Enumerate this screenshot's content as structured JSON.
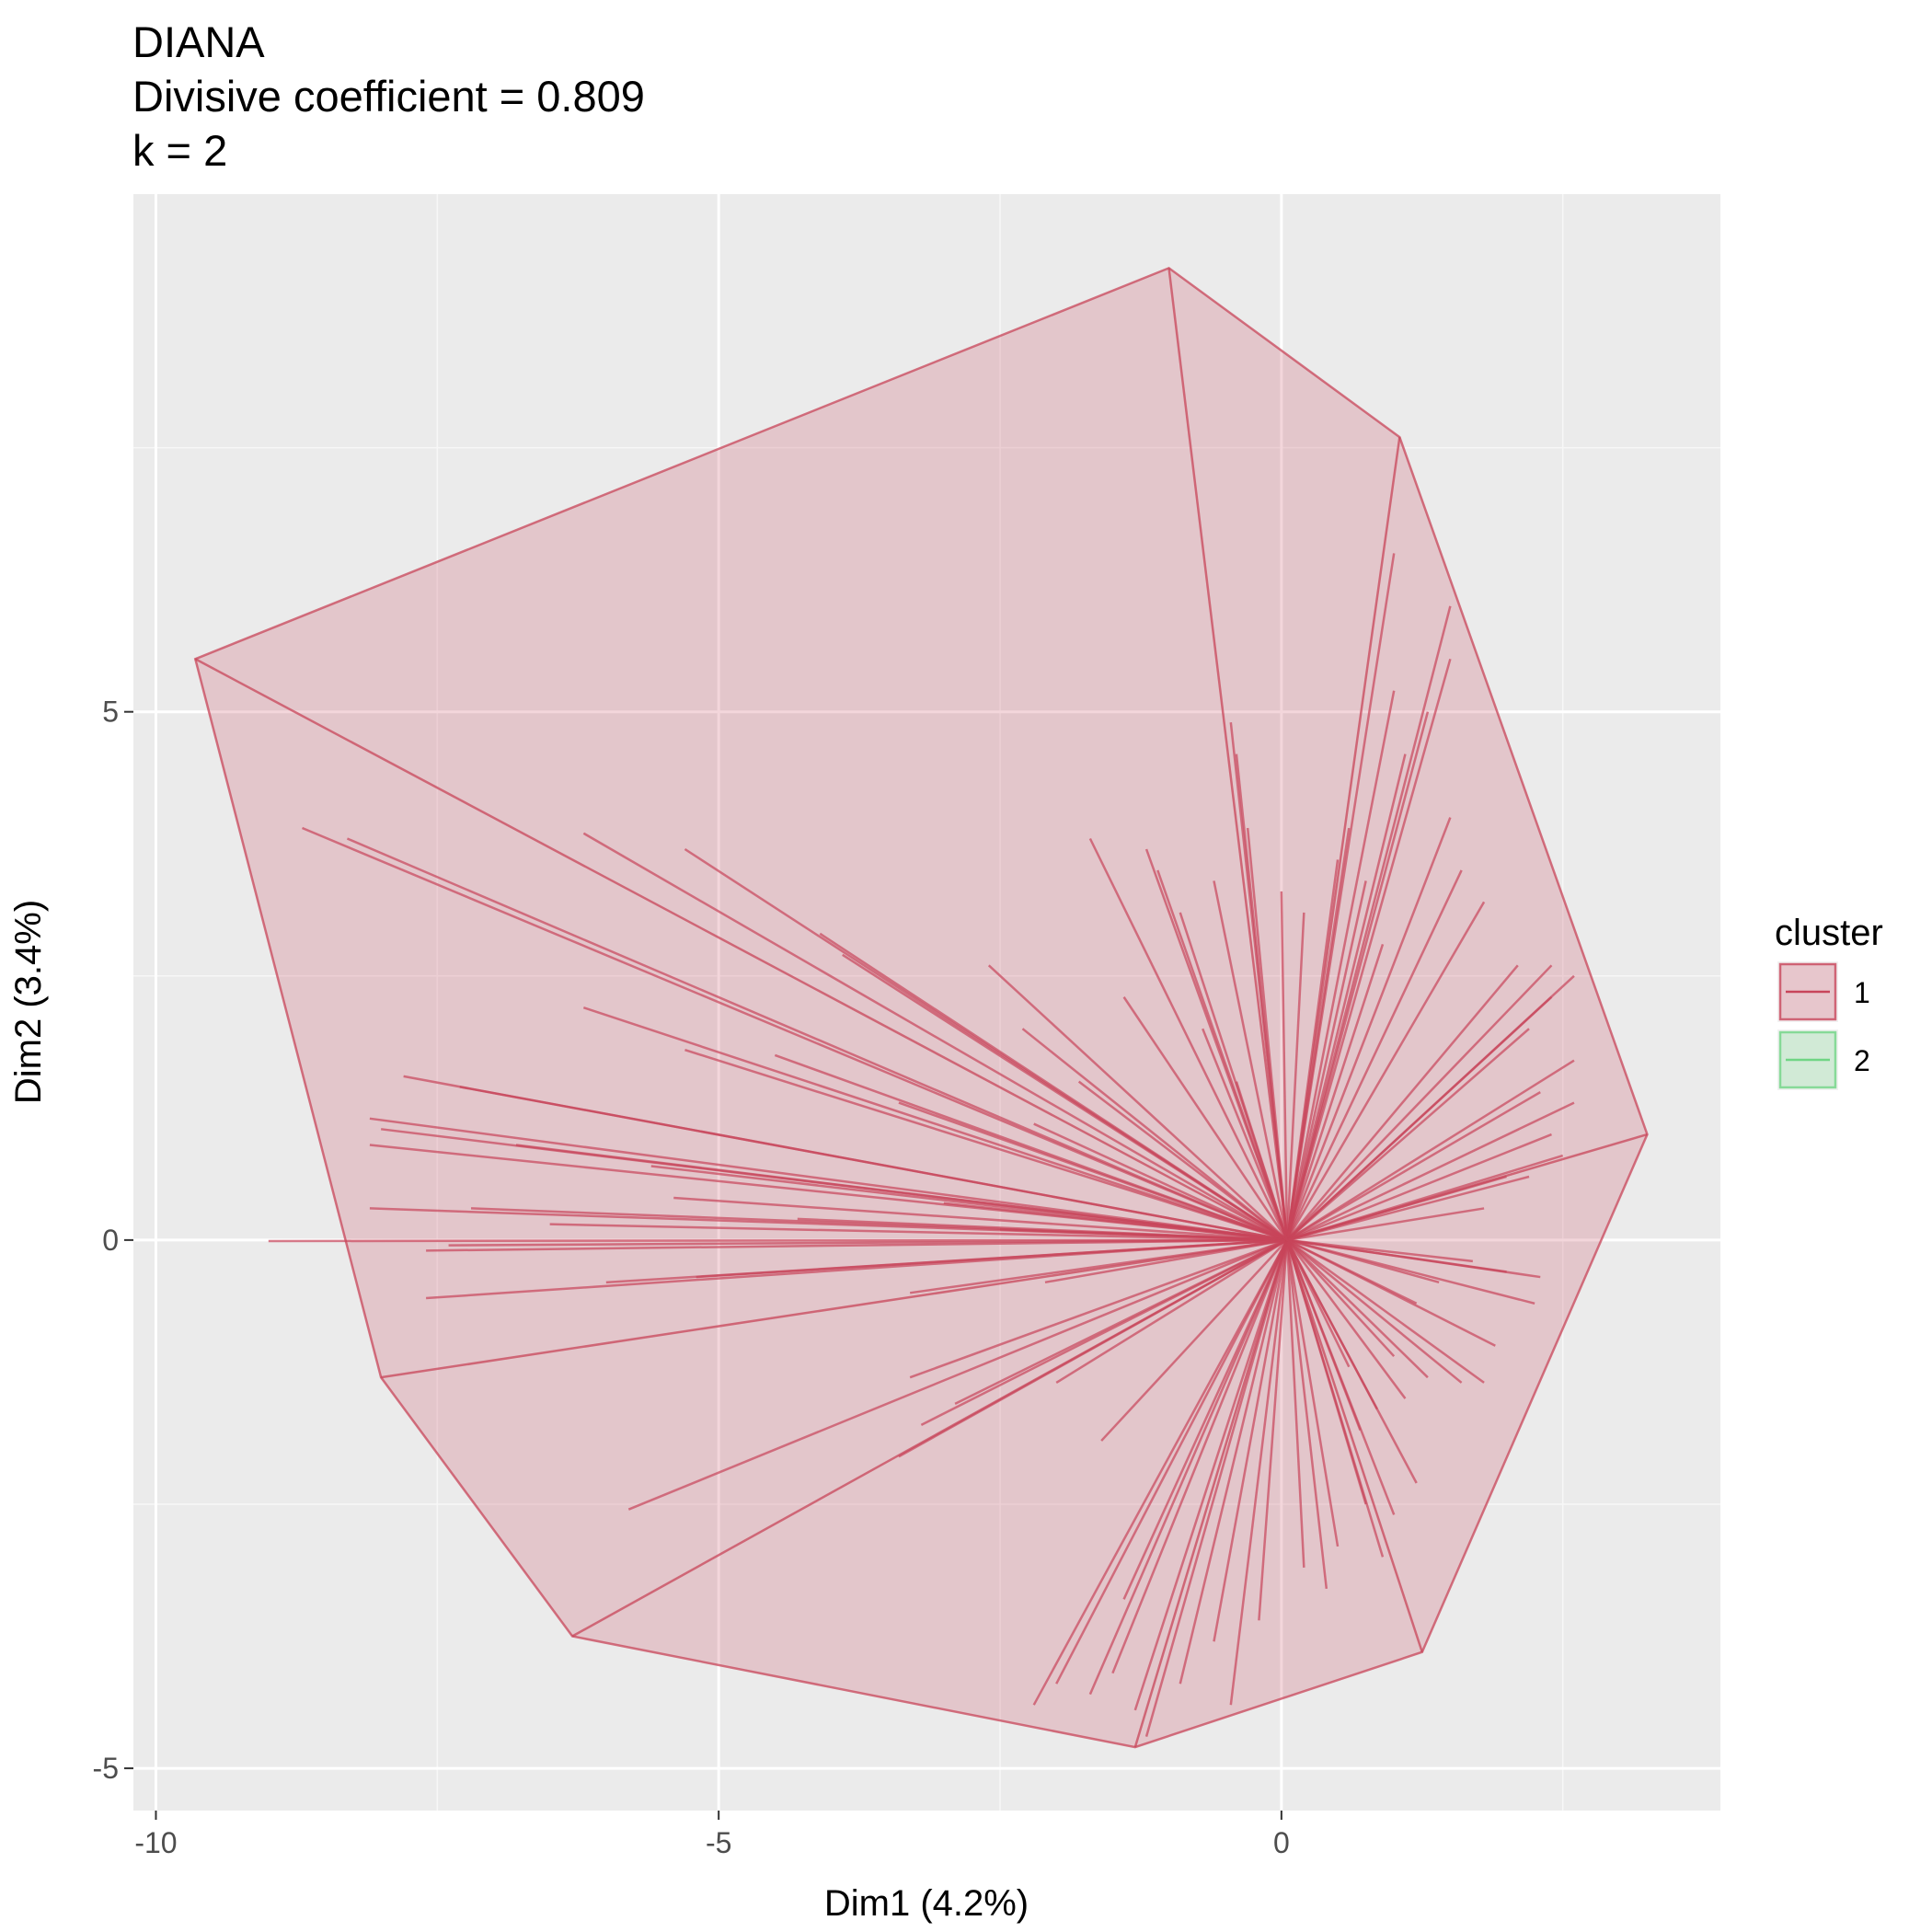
{
  "chart_data": {
    "type": "scatter",
    "title_lines": [
      "DIANA",
      "Divisive coefficient = 0.809",
      "k = 2"
    ],
    "xlabel": "Dim1 (4.2%)",
    "ylabel": "Dim2 (3.4%)",
    "xlim": [
      -10.2,
      3.9
    ],
    "ylim": [
      -5.4,
      9.9
    ],
    "x_ticks": [
      -10,
      -5,
      0
    ],
    "x_tick_labels": [
      "-10",
      "-5",
      "0"
    ],
    "y_ticks": [
      -5,
      0,
      5
    ],
    "y_tick_labels": [
      "-5",
      "0",
      "5"
    ],
    "grid": true,
    "legend": {
      "title": "cluster",
      "position": "right",
      "entries": [
        {
          "label": "1",
          "color": "#c8455a",
          "fill": "#e3c5cb"
        },
        {
          "label": "2",
          "color": "#6fd584",
          "fill": "#cfe9d4"
        }
      ]
    },
    "center": [
      0.05,
      0.0
    ],
    "hull": [
      [
        -9.65,
        5.5
      ],
      [
        -1.0,
        9.2
      ],
      [
        1.05,
        7.6
      ],
      [
        3.25,
        1.0
      ],
      [
        1.25,
        -3.9
      ],
      [
        -1.3,
        -4.8
      ],
      [
        -6.3,
        -3.75
      ],
      [
        -8.0,
        -1.3
      ]
    ],
    "points": [
      [
        -8.7,
        3.9
      ],
      [
        -8.3,
        3.8
      ],
      [
        -6.2,
        3.85
      ],
      [
        -5.3,
        3.7
      ],
      [
        -4.1,
        2.9
      ],
      [
        -3.9,
        2.7
      ],
      [
        -6.2,
        2.2
      ],
      [
        -5.3,
        1.8
      ],
      [
        -4.5,
        1.75
      ],
      [
        -7.8,
        1.55
      ],
      [
        -7.3,
        1.45
      ],
      [
        -8.1,
        1.15
      ],
      [
        -8.0,
        1.05
      ],
      [
        -8.1,
        0.9
      ],
      [
        -6.8,
        0.9
      ],
      [
        -5.6,
        0.7
      ],
      [
        -3.4,
        1.3
      ],
      [
        -2.2,
        1.1
      ],
      [
        -9.0,
        -0.01
      ],
      [
        -7.4,
        -0.05
      ],
      [
        -7.6,
        -0.1
      ],
      [
        -8.1,
        0.3
      ],
      [
        -7.2,
        0.3
      ],
      [
        -6.5,
        0.15
      ],
      [
        -5.4,
        0.4
      ],
      [
        -4.3,
        0.2
      ],
      [
        -3.0,
        0.35
      ],
      [
        -2.5,
        0.1
      ],
      [
        -7.6,
        -0.55
      ],
      [
        -6.0,
        -0.4
      ],
      [
        -5.2,
        -0.35
      ],
      [
        -3.3,
        -0.5
      ],
      [
        -2.1,
        -0.4
      ],
      [
        -5.8,
        -2.55
      ],
      [
        -3.4,
        -2.05
      ],
      [
        -3.2,
        -1.75
      ],
      [
        -2.9,
        -1.55
      ],
      [
        -2.0,
        -1.35
      ],
      [
        -3.3,
        -1.3
      ],
      [
        -1.6,
        -1.9
      ],
      [
        -2.2,
        -4.4
      ],
      [
        -2.0,
        -4.2
      ],
      [
        -1.7,
        -4.3
      ],
      [
        -1.5,
        -4.1
      ],
      [
        -1.3,
        -4.45
      ],
      [
        -1.2,
        -4.7
      ],
      [
        -1.4,
        -3.4
      ],
      [
        -0.9,
        -4.2
      ],
      [
        -0.6,
        -3.8
      ],
      [
        -0.45,
        -4.4
      ],
      [
        -0.2,
        -3.6
      ],
      [
        0.2,
        -3.1
      ],
      [
        0.4,
        -3.3
      ],
      [
        0.5,
        -2.9
      ],
      [
        0.75,
        -2.5
      ],
      [
        0.9,
        -3.0
      ],
      [
        1.0,
        -2.6
      ],
      [
        1.2,
        -2.3
      ],
      [
        0.7,
        -1.8
      ],
      [
        0.85,
        -1.6
      ],
      [
        1.1,
        -1.5
      ],
      [
        1.3,
        -1.3
      ],
      [
        1.6,
        -1.35
      ],
      [
        1.8,
        -1.35
      ],
      [
        1.9,
        -1.0
      ],
      [
        2.3,
        -0.35
      ],
      [
        2.25,
        -0.6
      ],
      [
        2.0,
        -0.3
      ],
      [
        1.7,
        -0.2
      ],
      [
        1.4,
        -0.4
      ],
      [
        1.2,
        -0.6
      ],
      [
        1.0,
        -1.1
      ],
      [
        0.6,
        -1.2
      ],
      [
        -1.7,
        3.8
      ],
      [
        -1.2,
        3.7
      ],
      [
        -1.1,
        3.5
      ],
      [
        -0.9,
        3.1
      ],
      [
        -0.6,
        3.4
      ],
      [
        -0.45,
        4.9
      ],
      [
        -0.4,
        4.6
      ],
      [
        -0.3,
        3.9
      ],
      [
        0.0,
        3.3
      ],
      [
        0.2,
        3.1
      ],
      [
        0.5,
        3.6
      ],
      [
        0.6,
        3.9
      ],
      [
        0.75,
        3.4
      ],
      [
        0.9,
        2.8
      ],
      [
        1.0,
        6.5
      ],
      [
        1.0,
        5.2
      ],
      [
        1.3,
        5.0
      ],
      [
        1.5,
        6.0
      ],
      [
        1.5,
        5.5
      ],
      [
        1.1,
        4.6
      ],
      [
        1.5,
        4.0
      ],
      [
        1.6,
        3.5
      ],
      [
        1.8,
        3.2
      ],
      [
        2.1,
        2.6
      ],
      [
        2.4,
        2.6
      ],
      [
        2.6,
        2.5
      ],
      [
        2.4,
        2.3
      ],
      [
        2.2,
        2.0
      ],
      [
        2.6,
        1.7
      ],
      [
        2.3,
        1.4
      ],
      [
        2.6,
        1.3
      ],
      [
        2.4,
        1.0
      ],
      [
        2.5,
        0.8
      ],
      [
        2.2,
        0.6
      ],
      [
        2.0,
        0.6
      ],
      [
        1.8,
        0.3
      ],
      [
        -1.4,
        2.3
      ],
      [
        -1.8,
        1.5
      ],
      [
        -2.3,
        2.0
      ],
      [
        -2.6,
        2.6
      ],
      [
        -0.7,
        2.0
      ],
      [
        -0.4,
        1.5
      ]
    ]
  }
}
